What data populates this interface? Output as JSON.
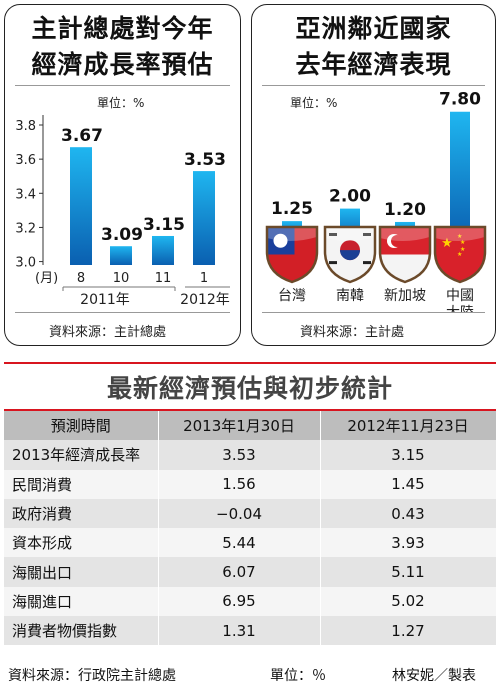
{
  "left_panel": {
    "title_line1": "主計總處對今年",
    "title_line2": "經濟成長率預估",
    "unit": "單位：%",
    "source": "資料來源：主計總處"
  },
  "right_panel": {
    "title_line1": "亞洲鄰近國家",
    "title_line2": "去年經濟表現",
    "unit": "單位：%",
    "source": "資料來源：主計處"
  },
  "table": {
    "title": "最新經濟預估與初步統計",
    "headers": [
      "預測時間",
      "2013年1月30日",
      "2012年11月23日"
    ],
    "rows": [
      {
        "label": "2013年經濟成長率",
        "a": "3.53",
        "b": "3.15"
      },
      {
        "label": "民間消費",
        "a": "1.56",
        "b": "1.45"
      },
      {
        "label": "政府消費",
        "a": "−0.04",
        "b": "0.43"
      },
      {
        "label": "資本形成",
        "a": "5.44",
        "b": "3.93"
      },
      {
        "label": "海關出口",
        "a": "6.07",
        "b": "5.11"
      },
      {
        "label": "海關進口",
        "a": "6.95",
        "b": "5.02"
      },
      {
        "label": "消費者物價指數",
        "a": "1.31",
        "b": "1.27"
      }
    ],
    "footer_source": "資料來源：行政院主計總處",
    "footer_unit": "單位：％",
    "footer_credit": "林安妮／製表"
  },
  "colors": {
    "bar_top": "#1fb6f0",
    "bar_bottom": "#0a5fb0",
    "accent_red": "#d8151f"
  },
  "chart_data": [
    {
      "type": "bar",
      "title": "主計總處對今年經濟成長率預估",
      "unit": "單位：%",
      "month_prefix": "(月)",
      "categories": [
        "8",
        "10",
        "11",
        "1"
      ],
      "year_labels": [
        "2011年",
        "2012年"
      ],
      "values": [
        3.67,
        3.09,
        3.15,
        3.53
      ],
      "value_labels": [
        "3.67",
        "3.09",
        "3.15",
        "3.53"
      ],
      "yticks": [
        "3.8",
        "3.6",
        "3.4",
        "3.2",
        "3.0"
      ],
      "ylim": [
        2.98,
        3.8
      ]
    },
    {
      "type": "bar",
      "title": "亞洲鄰近國家去年經濟表現",
      "unit": "單位：%",
      "categories": [
        "台灣",
        "南韓",
        "新加坡",
        "中國大陸"
      ],
      "values": [
        1.25,
        2.0,
        1.2,
        7.8
      ],
      "value_labels": [
        "1.25",
        "2.00",
        "1.20",
        "7.80"
      ],
      "flags": [
        "taiwan-flag",
        "south-korea-flag",
        "singapore-flag",
        "china-flag"
      ]
    }
  ]
}
